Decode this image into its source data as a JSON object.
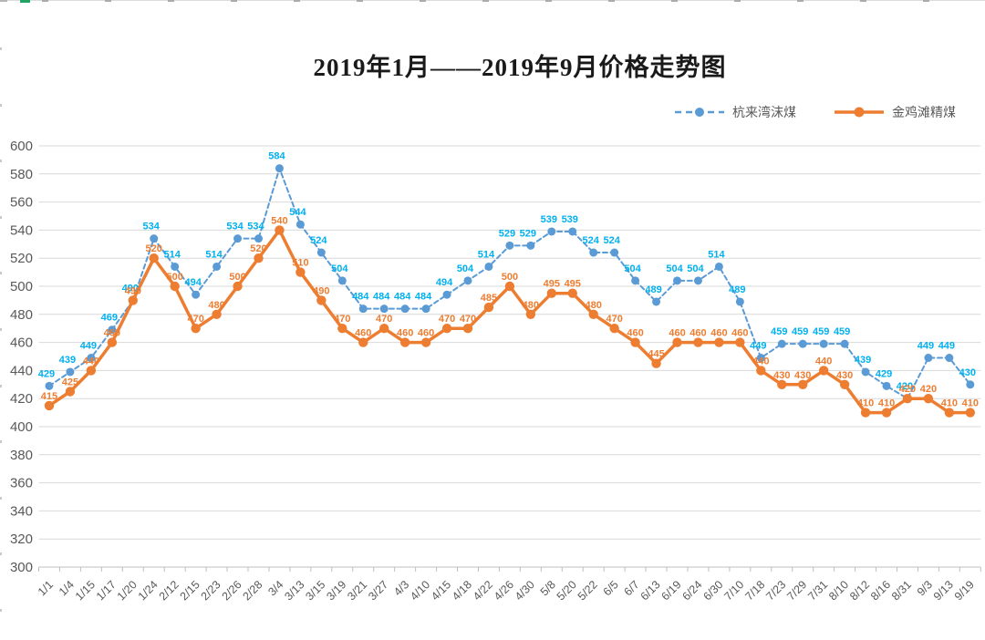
{
  "chart_data": {
    "type": "line",
    "title": "2019年1月——2019年9月价格走势图",
    "categories": [
      "1/1",
      "1/4",
      "1/15",
      "1/17",
      "1/20",
      "1/24",
      "2/12",
      "2/15",
      "2/23",
      "2/26",
      "2/28",
      "3/4",
      "3/13",
      "3/15",
      "3/19",
      "3/21",
      "3/27",
      "4/3",
      "4/10",
      "4/15",
      "4/18",
      "4/22",
      "4/26",
      "4/30",
      "5/8",
      "5/20",
      "5/22",
      "6/5",
      "6/7",
      "6/13",
      "6/19",
      "6/24",
      "6/30",
      "7/10",
      "7/18",
      "7/23",
      "7/29",
      "7/31",
      "8/10",
      "8/12",
      "8/16",
      "8/31",
      "9/3",
      "9/13",
      "9/19"
    ],
    "series": [
      {
        "name": "杭来湾沫煤",
        "line_style": "dashed",
        "line_color": "#5B9BD5",
        "label_color": "#00B0F0",
        "values": [
          429,
          439,
          449,
          469,
          490,
          534,
          514,
          494,
          514,
          534,
          534,
          584,
          544,
          524,
          504,
          484,
          484,
          484,
          484,
          494,
          504,
          514,
          529,
          529,
          539,
          539,
          524,
          524,
          504,
          489,
          504,
          504,
          514,
          489,
          449,
          459,
          459,
          459,
          459,
          439,
          429,
          420,
          449,
          449,
          430
        ]
      },
      {
        "name": "金鸡滩精煤",
        "line_style": "solid",
        "line_color": "#ED7D31",
        "label_color": "#ED7D31",
        "values": [
          415,
          425,
          440,
          460,
          490,
          520,
          500,
          470,
          480,
          500,
          520,
          540,
          510,
          490,
          470,
          460,
          470,
          460,
          460,
          470,
          470,
          485,
          500,
          480,
          495,
          495,
          480,
          470,
          460,
          445,
          460,
          460,
          460,
          460,
          440,
          430,
          430,
          440,
          430,
          410,
          410,
          420,
          420,
          410,
          410
        ]
      }
    ],
    "y_axis": {
      "min": 300,
      "max": 600,
      "step": 20,
      "ticks": [
        600,
        580,
        560,
        540,
        520,
        500,
        480,
        460,
        440,
        420,
        400,
        380,
        360,
        340,
        320,
        300
      ]
    },
    "x_axis": {
      "label_rotation": -45
    },
    "grid": true,
    "data_labels": true,
    "legend_position": "top-right",
    "colors": {
      "gridline": "#D9D9D9",
      "axis_line": "#BFBFBF",
      "axis_text": "#595959",
      "background": "#FFFFFF"
    }
  }
}
